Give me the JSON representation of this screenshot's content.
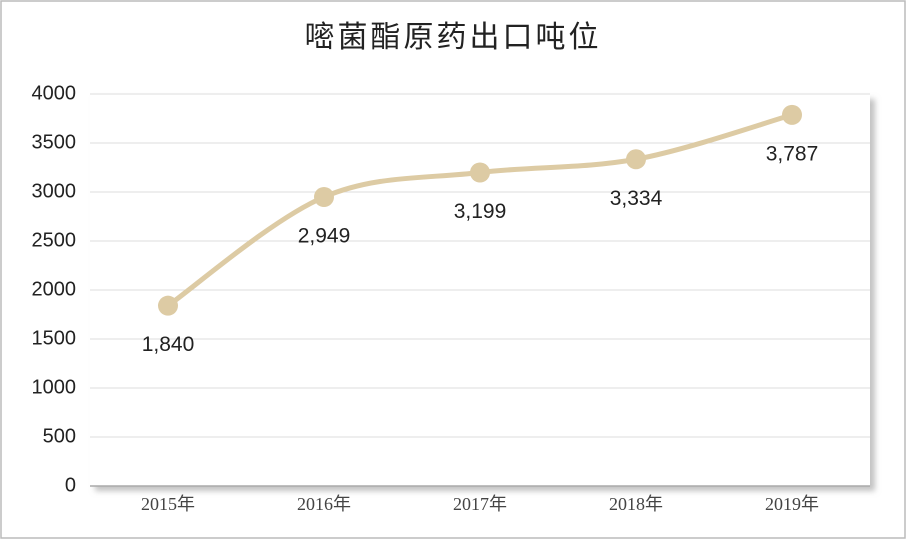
{
  "chart_data": {
    "type": "line",
    "title": "嘧菌酯原药出口吨位",
    "categories": [
      "2015年",
      "2016年",
      "2017年",
      "2018年",
      "2019年"
    ],
    "values": [
      1840,
      2949,
      3199,
      3334,
      3787
    ],
    "value_labels": [
      "1,840",
      "2,949",
      "3,199",
      "3,334",
      "3,787"
    ],
    "color": "#ddcba4",
    "ylim": [
      0,
      4000
    ],
    "yticks": [
      0,
      500,
      1000,
      1500,
      2000,
      2500,
      3000,
      3500,
      4000
    ],
    "grid": true
  }
}
